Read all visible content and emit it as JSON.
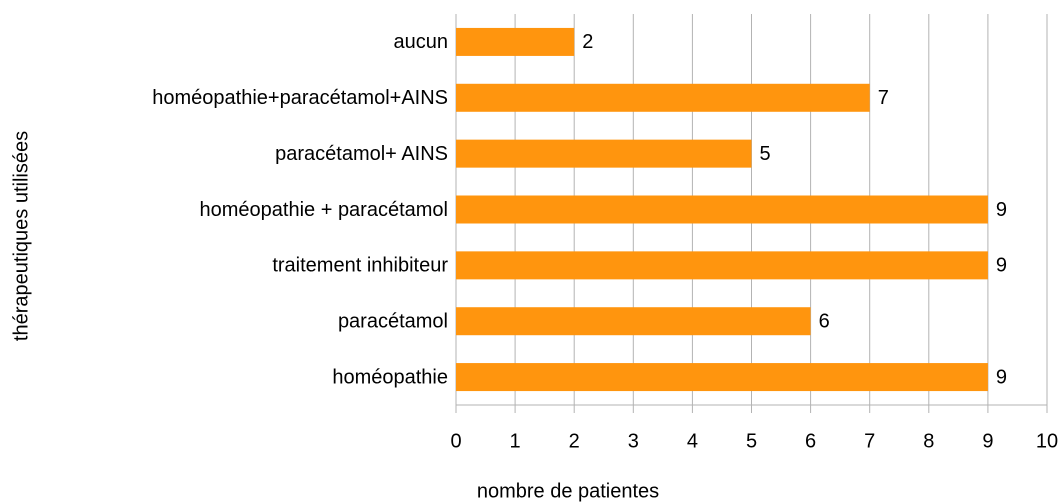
{
  "chart_data": {
    "type": "bar",
    "orientation": "horizontal",
    "x_label": "nombre de patientes",
    "y_label": "thérapeutiques utilisées",
    "categories": [
      "aucun",
      "homéopathie+paracétamol+AINS",
      "paracétamol+ AINS",
      "homéopathie + paracétamol",
      "traitement inhibiteur",
      "paracétamol",
      "homéopathie"
    ],
    "values": [
      2,
      7,
      5,
      9,
      9,
      6,
      9
    ],
    "color": "#ff950e",
    "xlim": [
      0,
      10
    ],
    "xticks": [
      0,
      1,
      2,
      3,
      4,
      5,
      6,
      7,
      8,
      9,
      10
    ],
    "grid": true
  }
}
